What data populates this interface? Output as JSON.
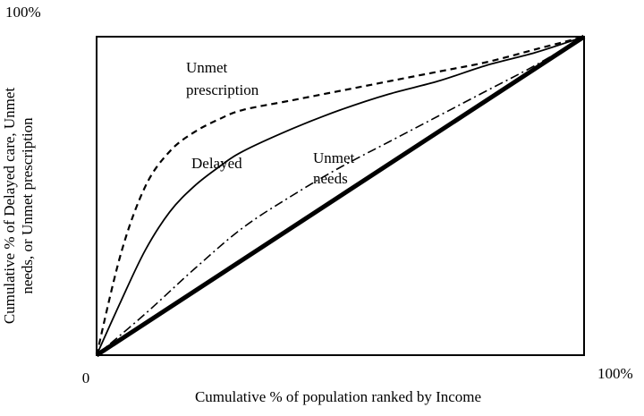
{
  "chart_data": {
    "type": "line",
    "title": "",
    "xlabel": "Cumulative % of population ranked by Income",
    "ylabel": [
      "Cumulative % of Delayed care, Unmet",
      "needs, or Unmet prescription"
    ],
    "x_ticks": {
      "start": "0",
      "end": "100%"
    },
    "y_ticks": {
      "end": "100%"
    },
    "xlim": [
      0,
      100
    ],
    "ylim": [
      0,
      100
    ],
    "grid": false,
    "legend": "none",
    "series": [
      {
        "name": "Unmet prescription",
        "label_lines": [
          "Unmet",
          "prescription"
        ],
        "style": "dashed",
        "color": "#000000",
        "x": [
          0,
          5,
          10,
          15,
          20,
          25,
          30,
          40,
          50,
          60,
          70,
          80,
          90,
          100
        ],
        "y": [
          0,
          32,
          53,
          64,
          70,
          74,
          77,
          80,
          83,
          86,
          89,
          92,
          96,
          100
        ]
      },
      {
        "name": "Delayed",
        "label_lines": [
          "Delayed"
        ],
        "style": "solid",
        "color": "#000000",
        "x": [
          0,
          5,
          10,
          15,
          20,
          25,
          30,
          40,
          50,
          60,
          70,
          80,
          90,
          100
        ],
        "y": [
          0,
          17,
          33,
          45,
          53,
          59,
          64,
          71,
          77,
          82,
          86,
          91,
          95,
          100
        ]
      },
      {
        "name": "Unmet needs",
        "label_lines": [
          "Unmet",
          "needs"
        ],
        "style": "dash-dot",
        "color": "#000000",
        "x": [
          0,
          10,
          20,
          30,
          40,
          50,
          60,
          70,
          80,
          90,
          100
        ],
        "y": [
          0,
          13,
          27,
          40,
          50,
          59,
          67,
          75,
          83,
          91,
          100
        ]
      },
      {
        "name": "",
        "style": "thick-solid",
        "color": "#000000",
        "x": [
          0,
          100
        ],
        "y": [
          0,
          100
        ]
      }
    ]
  }
}
